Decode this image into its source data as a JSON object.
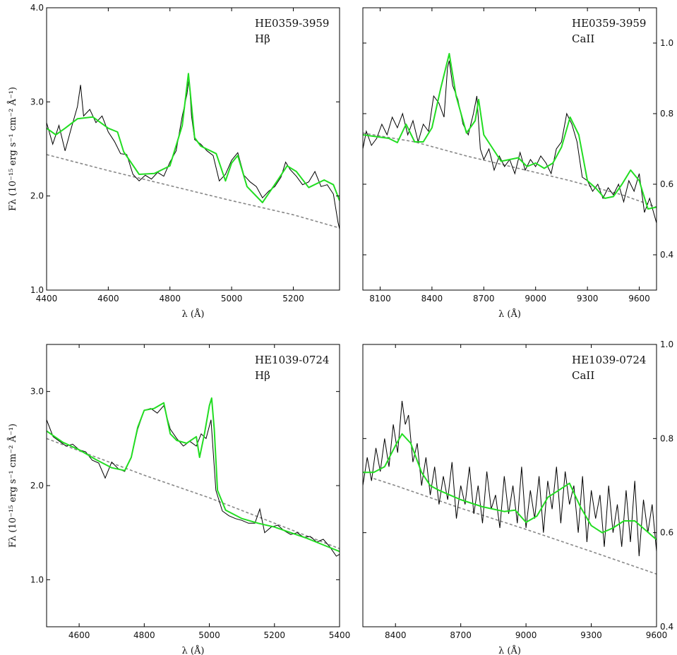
{
  "colors": {
    "observed": "#000000",
    "model": "#22dd22",
    "continuum": "#888888"
  },
  "chart_data": [
    {
      "type": "line",
      "annotation": [
        "HE0359-3959",
        "Hβ"
      ],
      "xlabel": "λ (Å)",
      "ylabel": "Fλ (10⁻¹⁵ erg s⁻¹ cm⁻² Å⁻¹)",
      "xlim": [
        4400,
        5350
      ],
      "ylim": [
        1.0,
        4.0
      ],
      "xticks": [
        "4400",
        "4600",
        "4800",
        "5000",
        "5200"
      ],
      "yticks": [
        "1.0",
        "2.0",
        "3.0",
        "4.0"
      ],
      "y_axis_side": "left",
      "continuum": {
        "x": [
          4400,
          4600,
          4800,
          5000,
          5200,
          5350
        ],
        "y": [
          2.44,
          2.27,
          2.11,
          1.95,
          1.8,
          1.66
        ]
      },
      "model": {
        "x": [
          4400,
          4430,
          4460,
          4500,
          4550,
          4600,
          4630,
          4650,
          4700,
          4750,
          4800,
          4840,
          4860,
          4880,
          4900,
          4950,
          4980,
          5000,
          5020,
          5050,
          5100,
          5150,
          5180,
          5210,
          5250,
          5300,
          5330,
          5350
        ],
        "y": [
          2.72,
          2.65,
          2.72,
          2.82,
          2.84,
          2.72,
          2.68,
          2.47,
          2.23,
          2.24,
          2.32,
          2.75,
          3.3,
          2.62,
          2.53,
          2.45,
          2.16,
          2.35,
          2.43,
          2.1,
          1.93,
          2.17,
          2.32,
          2.26,
          2.09,
          2.17,
          2.12,
          1.95
        ]
      },
      "observed": {
        "x": [
          4400,
          4420,
          4440,
          4460,
          4480,
          4500,
          4510,
          4520,
          4540,
          4560,
          4580,
          4600,
          4620,
          4640,
          4660,
          4680,
          4700,
          4720,
          4740,
          4760,
          4780,
          4800,
          4820,
          4840,
          4855,
          4862,
          4870,
          4880,
          4900,
          4920,
          4940,
          4960,
          4980,
          5000,
          5020,
          5040,
          5060,
          5080,
          5100,
          5120,
          5140,
          5160,
          5175,
          5190,
          5210,
          5230,
          5250,
          5270,
          5290,
          5310,
          5330,
          5345,
          5350
        ],
        "y": [
          2.78,
          2.55,
          2.75,
          2.48,
          2.72,
          2.95,
          3.18,
          2.85,
          2.92,
          2.78,
          2.85,
          2.68,
          2.58,
          2.45,
          2.44,
          2.23,
          2.16,
          2.22,
          2.18,
          2.25,
          2.21,
          2.36,
          2.48,
          2.85,
          3.08,
          3.25,
          2.85,
          2.6,
          2.55,
          2.48,
          2.43,
          2.16,
          2.23,
          2.38,
          2.46,
          2.22,
          2.15,
          2.1,
          1.98,
          2.05,
          2.1,
          2.2,
          2.36,
          2.28,
          2.21,
          2.12,
          2.15,
          2.26,
          2.1,
          2.12,
          2.02,
          1.72,
          1.65
        ]
      }
    },
    {
      "type": "line",
      "annotation": [
        "HE0359-3959",
        "CaII"
      ],
      "xlabel": "λ (Å)",
      "ylabel": "",
      "xlim": [
        8000,
        9700
      ],
      "ylim": [
        0.3,
        1.1
      ],
      "xticks": [
        "8100",
        "8400",
        "8700",
        "9000",
        "9300",
        "9600"
      ],
      "yticks": [
        "0.4",
        "0.6",
        "0.8",
        "1.0"
      ],
      "y_axis_side": "right",
      "continuum": {
        "x": [
          8000,
          8300,
          8600,
          8900,
          9200,
          9500,
          9700
        ],
        "y": [
          0.745,
          0.72,
          0.68,
          0.645,
          0.61,
          0.57,
          0.535
        ]
      },
      "model": {
        "x": [
          8000,
          8150,
          8200,
          8250,
          8300,
          8350,
          8400,
          8450,
          8500,
          8540,
          8600,
          8650,
          8670,
          8700,
          8800,
          8900,
          8950,
          9000,
          9050,
          9100,
          9150,
          9200,
          9250,
          9300,
          9350,
          9400,
          9450,
          9500,
          9550,
          9600,
          9650,
          9700
        ],
        "y": [
          0.74,
          0.73,
          0.718,
          0.77,
          0.72,
          0.72,
          0.76,
          0.87,
          0.97,
          0.85,
          0.745,
          0.78,
          0.84,
          0.74,
          0.665,
          0.675,
          0.65,
          0.66,
          0.645,
          0.66,
          0.705,
          0.79,
          0.74,
          0.61,
          0.588,
          0.56,
          0.565,
          0.6,
          0.64,
          0.61,
          0.53,
          0.535
        ]
      },
      "observed": {
        "x": [
          8000,
          8020,
          8050,
          8080,
          8110,
          8140,
          8170,
          8200,
          8230,
          8260,
          8290,
          8320,
          8350,
          8380,
          8410,
          8440,
          8470,
          8490,
          8500,
          8520,
          8550,
          8580,
          8610,
          8640,
          8660,
          8680,
          8700,
          8730,
          8760,
          8790,
          8820,
          8850,
          8880,
          8910,
          8940,
          8970,
          9000,
          9030,
          9060,
          9090,
          9120,
          9150,
          9180,
          9210,
          9240,
          9270,
          9300,
          9330,
          9360,
          9390,
          9420,
          9450,
          9480,
          9510,
          9540,
          9570,
          9600,
          9630,
          9660,
          9700
        ],
        "y": [
          0.7,
          0.75,
          0.71,
          0.73,
          0.77,
          0.74,
          0.79,
          0.76,
          0.8,
          0.74,
          0.78,
          0.72,
          0.77,
          0.75,
          0.85,
          0.83,
          0.79,
          0.93,
          0.95,
          0.88,
          0.84,
          0.77,
          0.74,
          0.8,
          0.85,
          0.7,
          0.67,
          0.7,
          0.64,
          0.68,
          0.65,
          0.67,
          0.63,
          0.69,
          0.64,
          0.67,
          0.65,
          0.68,
          0.66,
          0.63,
          0.7,
          0.72,
          0.8,
          0.77,
          0.72,
          0.62,
          0.61,
          0.58,
          0.6,
          0.56,
          0.59,
          0.57,
          0.6,
          0.55,
          0.61,
          0.58,
          0.63,
          0.52,
          0.56,
          0.49
        ]
      }
    },
    {
      "type": "line",
      "annotation": [
        "HE1039-0724",
        "Hβ"
      ],
      "xlabel": "λ (Å)",
      "ylabel": "Fλ (10⁻¹⁵ erg s⁻¹ cm⁻² Å⁻¹)",
      "xlim": [
        4500,
        5400
      ],
      "ylim": [
        0.5,
        3.5
      ],
      "xticks": [
        "4600",
        "4800",
        "5000",
        "5200",
        "5400"
      ],
      "yticks": [
        "1.0",
        "2.0",
        "3.0"
      ],
      "y_axis_side": "left",
      "continuum": {
        "x": [
          4500,
          4600,
          4800,
          5000,
          5200,
          5400
        ],
        "y": [
          2.5,
          2.37,
          2.11,
          1.87,
          1.6,
          1.33
        ]
      },
      "model": {
        "x": [
          4500,
          4550,
          4600,
          4650,
          4700,
          4740,
          4760,
          4780,
          4800,
          4830,
          4860,
          4880,
          4900,
          4930,
          4960,
          4970,
          4985,
          5000,
          5007,
          5015,
          5025,
          5050,
          5100,
          5150,
          5200,
          5250,
          5300,
          5350,
          5400
        ],
        "y": [
          2.58,
          2.46,
          2.38,
          2.28,
          2.19,
          2.16,
          2.3,
          2.62,
          2.8,
          2.82,
          2.88,
          2.55,
          2.48,
          2.45,
          2.52,
          2.3,
          2.55,
          2.85,
          2.93,
          2.6,
          1.95,
          1.74,
          1.65,
          1.6,
          1.56,
          1.5,
          1.44,
          1.37,
          1.3
        ]
      },
      "observed": {
        "x": [
          4500,
          4520,
          4540,
          4560,
          4580,
          4600,
          4620,
          4640,
          4660,
          4680,
          4700,
          4720,
          4740,
          4760,
          4780,
          4800,
          4820,
          4840,
          4860,
          4880,
          4900,
          4920,
          4940,
          4960,
          4975,
          4990,
          5005,
          5020,
          5040,
          5060,
          5080,
          5100,
          5120,
          5140,
          5155,
          5170,
          5190,
          5210,
          5230,
          5250,
          5270,
          5290,
          5310,
          5330,
          5350,
          5370,
          5390,
          5400
        ],
        "y": [
          2.7,
          2.52,
          2.47,
          2.42,
          2.44,
          2.38,
          2.36,
          2.27,
          2.24,
          2.08,
          2.25,
          2.18,
          2.15,
          2.3,
          2.6,
          2.8,
          2.82,
          2.77,
          2.85,
          2.6,
          2.5,
          2.42,
          2.47,
          2.42,
          2.55,
          2.5,
          2.7,
          1.95,
          1.73,
          1.68,
          1.65,
          1.63,
          1.6,
          1.6,
          1.75,
          1.5,
          1.56,
          1.58,
          1.52,
          1.48,
          1.5,
          1.45,
          1.46,
          1.4,
          1.43,
          1.35,
          1.25,
          1.27
        ]
      }
    },
    {
      "type": "line",
      "annotation": [
        "HE1039-0724",
        "CaII"
      ],
      "xlabel": "λ (Å)",
      "ylabel": "",
      "xlim": [
        8250,
        9600
      ],
      "ylim": [
        0.4,
        1.0
      ],
      "xticks": [
        "8400",
        "8700",
        "9000",
        "9300",
        "9600"
      ],
      "yticks": [
        "0.4",
        "0.6",
        "0.8",
        "1.0"
      ],
      "y_axis_side": "right",
      "continuum": {
        "x": [
          8300,
          8400,
          8700,
          9000,
          9300,
          9600
        ],
        "y": [
          0.715,
          0.7,
          0.652,
          0.607,
          0.56,
          0.512
        ]
      },
      "model": {
        "x": [
          8250,
          8300,
          8350,
          8400,
          8430,
          8470,
          8520,
          8560,
          8600,
          8700,
          8800,
          8900,
          8950,
          9000,
          9050,
          9100,
          9150,
          9200,
          9250,
          9300,
          9350,
          9400,
          9450,
          9500,
          9550,
          9600
        ],
        "y": [
          0.728,
          0.728,
          0.74,
          0.785,
          0.81,
          0.79,
          0.728,
          0.7,
          0.69,
          0.67,
          0.655,
          0.645,
          0.648,
          0.622,
          0.635,
          0.675,
          0.69,
          0.705,
          0.655,
          0.615,
          0.6,
          0.61,
          0.625,
          0.625,
          0.605,
          0.585
        ]
      },
      "observed": {
        "x": [
          8250,
          8270,
          8290,
          8310,
          8330,
          8350,
          8370,
          8390,
          8410,
          8430,
          8445,
          8460,
          8480,
          8500,
          8520,
          8540,
          8560,
          8580,
          8600,
          8620,
          8640,
          8660,
          8680,
          8700,
          8720,
          8740,
          8760,
          8780,
          8800,
          8820,
          8840,
          8860,
          8880,
          8900,
          8920,
          8940,
          8960,
          8980,
          9000,
          9020,
          9040,
          9060,
          9080,
          9100,
          9120,
          9140,
          9160,
          9180,
          9200,
          9220,
          9240,
          9260,
          9280,
          9300,
          9320,
          9340,
          9360,
          9380,
          9400,
          9420,
          9440,
          9460,
          9480,
          9500,
          9520,
          9540,
          9560,
          9580,
          9600
        ],
        "y": [
          0.7,
          0.76,
          0.71,
          0.78,
          0.73,
          0.8,
          0.74,
          0.83,
          0.77,
          0.88,
          0.83,
          0.85,
          0.75,
          0.79,
          0.7,
          0.76,
          0.68,
          0.74,
          0.66,
          0.72,
          0.67,
          0.75,
          0.63,
          0.7,
          0.66,
          0.74,
          0.64,
          0.7,
          0.62,
          0.73,
          0.65,
          0.68,
          0.61,
          0.72,
          0.64,
          0.7,
          0.62,
          0.74,
          0.61,
          0.69,
          0.63,
          0.72,
          0.6,
          0.71,
          0.65,
          0.74,
          0.62,
          0.73,
          0.66,
          0.7,
          0.6,
          0.72,
          0.58,
          0.69,
          0.63,
          0.68,
          0.57,
          0.7,
          0.6,
          0.66,
          0.57,
          0.69,
          0.58,
          0.71,
          0.55,
          0.67,
          0.6,
          0.66,
          0.56
        ]
      }
    }
  ]
}
